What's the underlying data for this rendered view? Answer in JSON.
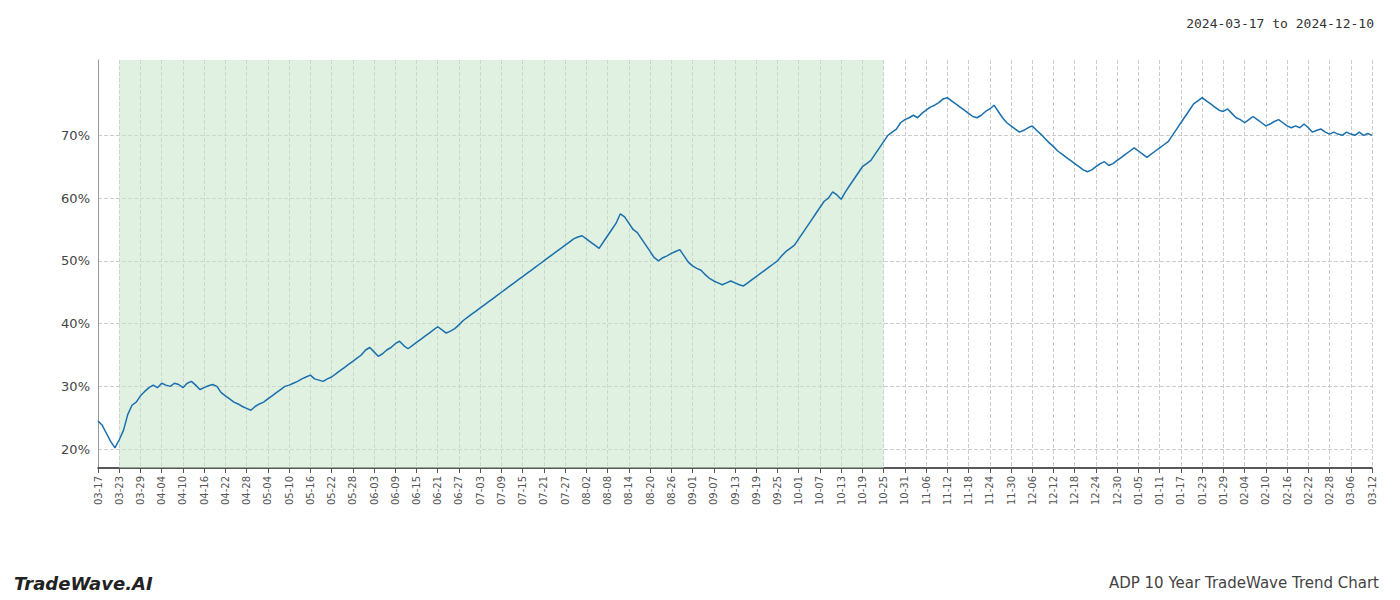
{
  "chart_data": {
    "type": "line",
    "title": "2024-03-17 to 2024-12-10",
    "annotations": [
      "TradeWave.AI",
      "ADP 10 Year TradeWave Trend Chart"
    ],
    "color": "#1a6fad",
    "grid": true,
    "shaded_range": [
      "03-23",
      "10-25"
    ],
    "shaded_color": "#c8e6c8",
    "ylim": [
      17,
      82
    ],
    "yticks": [
      {
        "value": 20,
        "label": "20%"
      },
      {
        "value": 30,
        "label": "30%"
      },
      {
        "value": 40,
        "label": "40%"
      },
      {
        "value": 50,
        "label": "50%"
      },
      {
        "value": 60,
        "label": "60%"
      },
      {
        "value": 70,
        "label": "70%"
      }
    ],
    "categories": [
      "03-17",
      null,
      null,
      null,
      null,
      "03-23",
      null,
      null,
      null,
      null,
      "03-29",
      null,
      null,
      null,
      null,
      "04-04",
      null,
      null,
      null,
      null,
      "04-10",
      null,
      null,
      null,
      null,
      "04-16",
      null,
      null,
      null,
      null,
      "04-22",
      null,
      null,
      null,
      null,
      "04-28",
      null,
      null,
      null,
      null,
      "05-04",
      null,
      null,
      null,
      null,
      "05-10",
      null,
      null,
      null,
      null,
      "05-16",
      null,
      null,
      null,
      null,
      "05-22",
      null,
      null,
      null,
      null,
      "05-28",
      null,
      null,
      null,
      null,
      "06-03",
      null,
      null,
      null,
      null,
      "06-09",
      null,
      null,
      null,
      null,
      "06-15",
      null,
      null,
      null,
      null,
      "06-21",
      null,
      null,
      null,
      null,
      "06-27",
      null,
      null,
      null,
      null,
      "07-03",
      null,
      null,
      null,
      null,
      "07-09",
      null,
      null,
      null,
      null,
      "07-15",
      null,
      null,
      null,
      null,
      "07-21",
      null,
      null,
      null,
      null,
      "07-27",
      null,
      null,
      null,
      null,
      "08-02",
      null,
      null,
      null,
      null,
      "08-08",
      null,
      null,
      null,
      null,
      "08-14",
      null,
      null,
      null,
      null,
      "08-20",
      null,
      null,
      null,
      null,
      "08-26",
      null,
      null,
      null,
      null,
      "09-01",
      null,
      null,
      null,
      null,
      "09-07",
      null,
      null,
      null,
      null,
      "09-13",
      null,
      null,
      null,
      null,
      "09-19",
      null,
      null,
      null,
      null,
      "09-25",
      null,
      null,
      null,
      null,
      "10-01",
      null,
      null,
      null,
      null,
      "10-07",
      null,
      null,
      null,
      null,
      "10-13",
      null,
      null,
      null,
      null,
      "10-19",
      null,
      null,
      null,
      null,
      "10-25",
      null,
      null,
      null,
      null,
      "10-31",
      null,
      null,
      null,
      null,
      "11-06",
      null,
      null,
      null,
      null,
      "11-12",
      null,
      null,
      null,
      null,
      "11-18",
      null,
      null,
      null,
      null,
      "11-24",
      null,
      null,
      null,
      null,
      "11-30",
      null,
      null,
      null,
      null,
      "12-06",
      null,
      null,
      null,
      null,
      "12-12",
      null,
      null,
      null,
      null,
      "12-18",
      null,
      null,
      null,
      null,
      "12-24",
      null,
      null,
      null,
      null,
      "12-30",
      null,
      null,
      null,
      null,
      "01-05",
      null,
      null,
      null,
      null,
      "01-11",
      null,
      null,
      null,
      null,
      "01-17",
      null,
      null,
      null,
      null,
      "01-23",
      null,
      null,
      null,
      null,
      "01-29",
      null,
      null,
      null,
      null,
      "02-04",
      null,
      null,
      null,
      null,
      "02-10",
      null,
      null,
      null,
      null,
      "02-16",
      null,
      null,
      null,
      null,
      "02-22",
      null,
      null,
      null,
      null,
      "02-28",
      null,
      null,
      null,
      null,
      "03-06",
      null,
      null,
      null,
      null,
      "03-12"
    ],
    "values": [
      24.5,
      23.8,
      22.5,
      21.2,
      20.2,
      21.5,
      23.0,
      25.5,
      27.0,
      27.5,
      28.5,
      29.2,
      29.8,
      30.2,
      29.8,
      30.5,
      30.2,
      30.0,
      30.5,
      30.3,
      29.8,
      30.5,
      30.8,
      30.2,
      29.5,
      29.8,
      30.1,
      30.3,
      30.0,
      29.0,
      28.5,
      28.0,
      27.5,
      27.2,
      26.8,
      26.5,
      26.2,
      26.8,
      27.2,
      27.5,
      28.0,
      28.5,
      29.0,
      29.5,
      30.0,
      30.2,
      30.5,
      30.8,
      31.2,
      31.5,
      31.8,
      31.2,
      31.0,
      30.8,
      31.2,
      31.5,
      32.0,
      32.5,
      33.0,
      33.5,
      34.0,
      34.5,
      35.0,
      35.8,
      36.2,
      35.5,
      34.8,
      35.2,
      35.8,
      36.2,
      36.8,
      37.2,
      36.5,
      36.0,
      36.5,
      37.0,
      37.5,
      38.0,
      38.5,
      39.0,
      39.5,
      39.0,
      38.5,
      38.8,
      39.2,
      39.8,
      40.5,
      41.0,
      41.5,
      42.0,
      42.5,
      43.0,
      43.5,
      44.0,
      44.5,
      45.0,
      45.5,
      46.0,
      46.5,
      47.0,
      47.5,
      48.0,
      48.5,
      49.0,
      49.5,
      50.0,
      50.5,
      51.0,
      51.5,
      52.0,
      52.5,
      53.0,
      53.5,
      53.8,
      54.0,
      53.5,
      53.0,
      52.5,
      52.0,
      53.0,
      54.0,
      55.0,
      56.0,
      57.5,
      57.0,
      56.0,
      55.0,
      54.5,
      53.5,
      52.5,
      51.5,
      50.5,
      50.0,
      50.5,
      50.8,
      51.2,
      51.5,
      51.8,
      50.8,
      49.8,
      49.2,
      48.8,
      48.5,
      47.8,
      47.2,
      46.8,
      46.5,
      46.2,
      46.5,
      46.8,
      46.5,
      46.2,
      46.0,
      46.5,
      47.0,
      47.5,
      48.0,
      48.5,
      49.0,
      49.5,
      50.0,
      50.8,
      51.5,
      52.0,
      52.5,
      53.5,
      54.5,
      55.5,
      56.5,
      57.5,
      58.5,
      59.5,
      60.0,
      61.0,
      60.5,
      59.8,
      61.0,
      62.0,
      63.0,
      64.0,
      65.0,
      65.5,
      66.0,
      67.0,
      68.0,
      69.0,
      70.0,
      70.5,
      71.0,
      72.0,
      72.5,
      72.8,
      73.2,
      72.8,
      73.5,
      74.0,
      74.5,
      74.8,
      75.2,
      75.8,
      76.0,
      75.5,
      75.0,
      74.5,
      74.0,
      73.5,
      73.0,
      72.8,
      73.2,
      73.8,
      74.2,
      74.8,
      73.8,
      72.8,
      72.0,
      71.5,
      71.0,
      70.5,
      70.8,
      71.2,
      71.5,
      70.8,
      70.2,
      69.5,
      68.8,
      68.2,
      67.5,
      67.0,
      66.5,
      66.0,
      65.5,
      65.0,
      64.5,
      64.2,
      64.5,
      65.0,
      65.5,
      65.8,
      65.2,
      65.5,
      66.0,
      66.5,
      67.0,
      67.5,
      68.0,
      67.5,
      67.0,
      66.5,
      67.0,
      67.5,
      68.0,
      68.5,
      69.0,
      70.0,
      71.0,
      72.0,
      73.0,
      74.0,
      75.0,
      75.5,
      76.0,
      75.5,
      75.0,
      74.5,
      74.0,
      73.8,
      74.2,
      73.5,
      72.8,
      72.5,
      72.0,
      72.5,
      73.0,
      72.5,
      72.0,
      71.5,
      71.8,
      72.2,
      72.5,
      72.0,
      71.5,
      71.2,
      71.5,
      71.2,
      71.8,
      71.2,
      70.5,
      70.8,
      71.0,
      70.5,
      70.2,
      70.5,
      70.2,
      70.0,
      70.5,
      70.2,
      70.0,
      70.5,
      70.0,
      70.3,
      70.0
    ]
  }
}
